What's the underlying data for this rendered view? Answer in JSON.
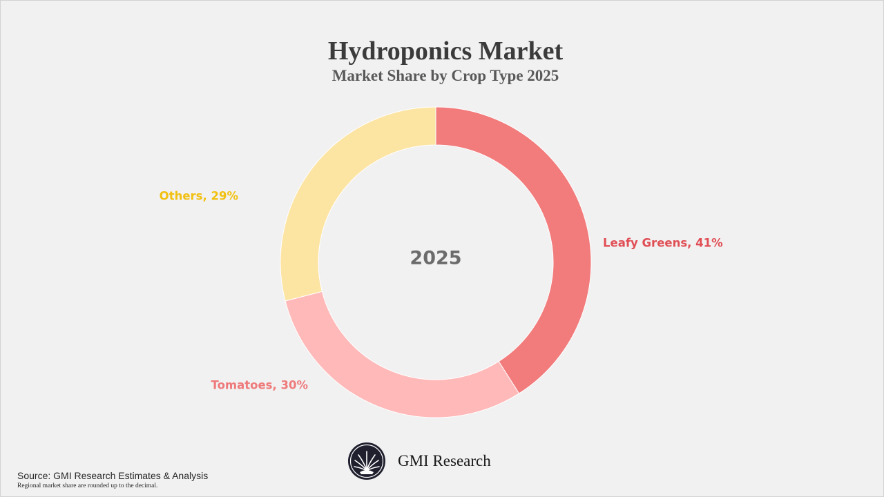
{
  "chart_data": {
    "type": "pie",
    "title": "Hydroponics Market",
    "subtitle": "Market Share by Crop Type 2025",
    "center_label": "2025",
    "series": [
      {
        "label": "Leafy Greens, 41%",
        "category": "Leafy Greens",
        "value": 41,
        "color": "#f27b7c",
        "label_color": "#e04e55"
      },
      {
        "label": "Tomatoes, 30%",
        "category": "Tomatoes",
        "value": 30,
        "color": "#ffb9b9",
        "label_color": "#ee7a7b"
      },
      {
        "label": "Others, 29%",
        "category": "Others",
        "value": 29,
        "color": "#fce4a3",
        "label_color": "#f1c010"
      }
    ]
  },
  "footer": {
    "source": "Source: GMI Research Estimates & Analysis",
    "note": "Regional market share are rounded up to the decimal.",
    "brand": "GMI Research"
  },
  "colors": {
    "background": "#f2f1f1",
    "logo": "#1f1f2e",
    "center_label": "#6b6b6b"
  }
}
